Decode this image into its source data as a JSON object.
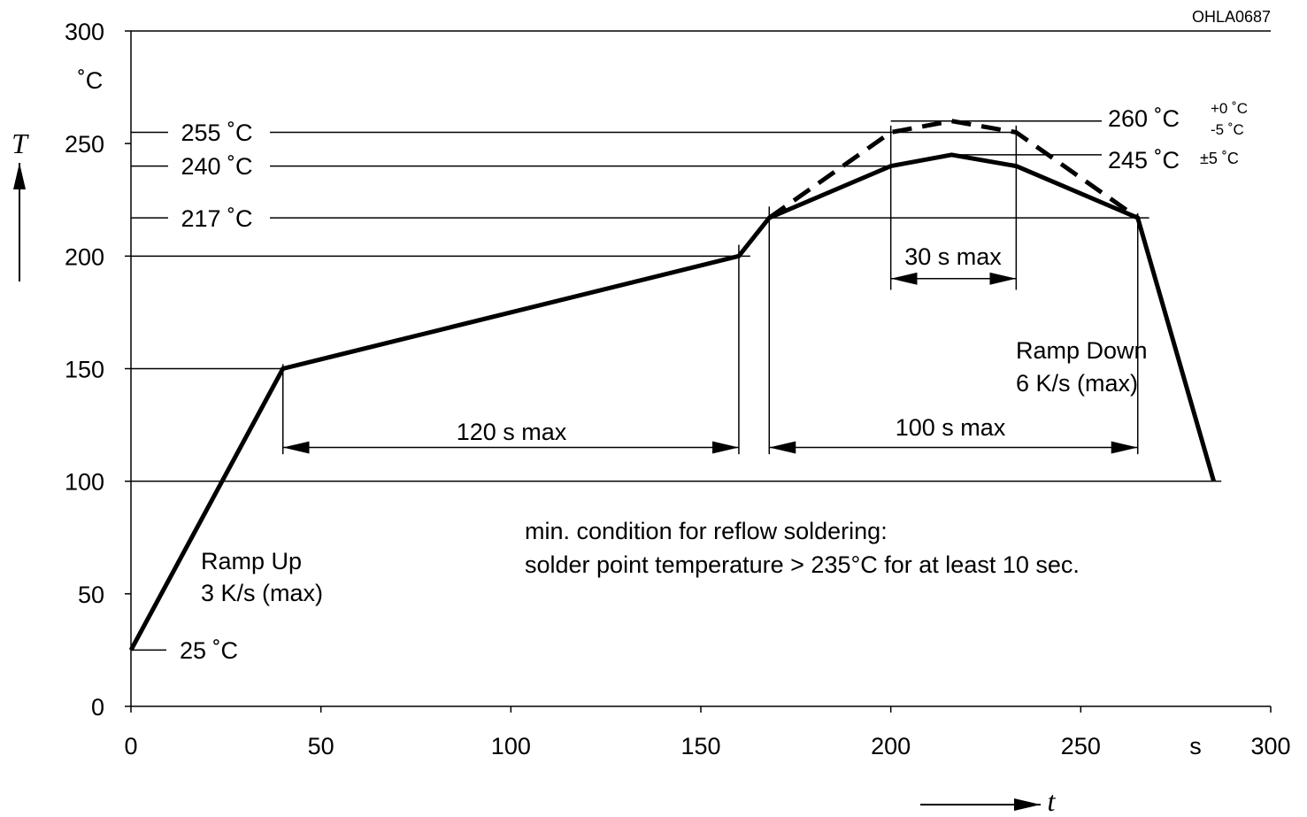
{
  "chart_data": {
    "type": "line",
    "reference_code": "OHLA0687",
    "y_axis": {
      "name": "T",
      "unit": "˚C",
      "range": [
        0,
        300
      ],
      "ticks": [
        "0",
        "50",
        "100",
        "150",
        "200",
        "250",
        "300"
      ]
    },
    "x_axis": {
      "name": "t",
      "unit": "s",
      "range": [
        0,
        300
      ],
      "ticks": [
        "0",
        "50",
        "100",
        "150",
        "200",
        "250",
        "300"
      ]
    },
    "grid": false,
    "series": [
      {
        "style": "solid",
        "x": [
          0,
          40,
          160,
          168,
          200,
          216,
          233,
          265,
          285
        ],
        "y": [
          25,
          150,
          200,
          217,
          240,
          245,
          240,
          217,
          100
        ]
      },
      {
        "style": "dashed",
        "x": [
          168,
          200,
          216,
          233,
          265
        ],
        "y": [
          217,
          255,
          260,
          255,
          217
        ]
      }
    ],
    "temperature_levels": [
      {
        "label": "255 ˚C",
        "value": 255
      },
      {
        "label": "240 ˚C",
        "value": 240
      },
      {
        "label": "217 ˚C",
        "value": 217
      },
      {
        "label": "25 ˚C",
        "value": 25
      }
    ],
    "peak_labels": [
      {
        "main": "260 ˚C",
        "tol_top": "+0 ˚C",
        "tol_bottom": "-5 ˚C",
        "value": 260
      },
      {
        "main": "245 ˚C",
        "tol": "±5 ˚C",
        "value": 245
      }
    ],
    "intervals": [
      {
        "label": "120 s max",
        "from": 40,
        "to": 160,
        "at_y": 115
      },
      {
        "label": "100 s max",
        "from": 168,
        "to": 265,
        "at_y": 115
      },
      {
        "label": "30 s max",
        "from": 200,
        "to": 233,
        "at_y": 190
      }
    ],
    "annotations": {
      "ramp_up": [
        "Ramp Up",
        "3 K/s (max)"
      ],
      "ramp_down": [
        "Ramp Down",
        "6 K/s (max)"
      ],
      "condition": [
        "min. condition for reflow soldering:",
        "solder point temperature > 235°C for at least 10 sec."
      ]
    }
  }
}
